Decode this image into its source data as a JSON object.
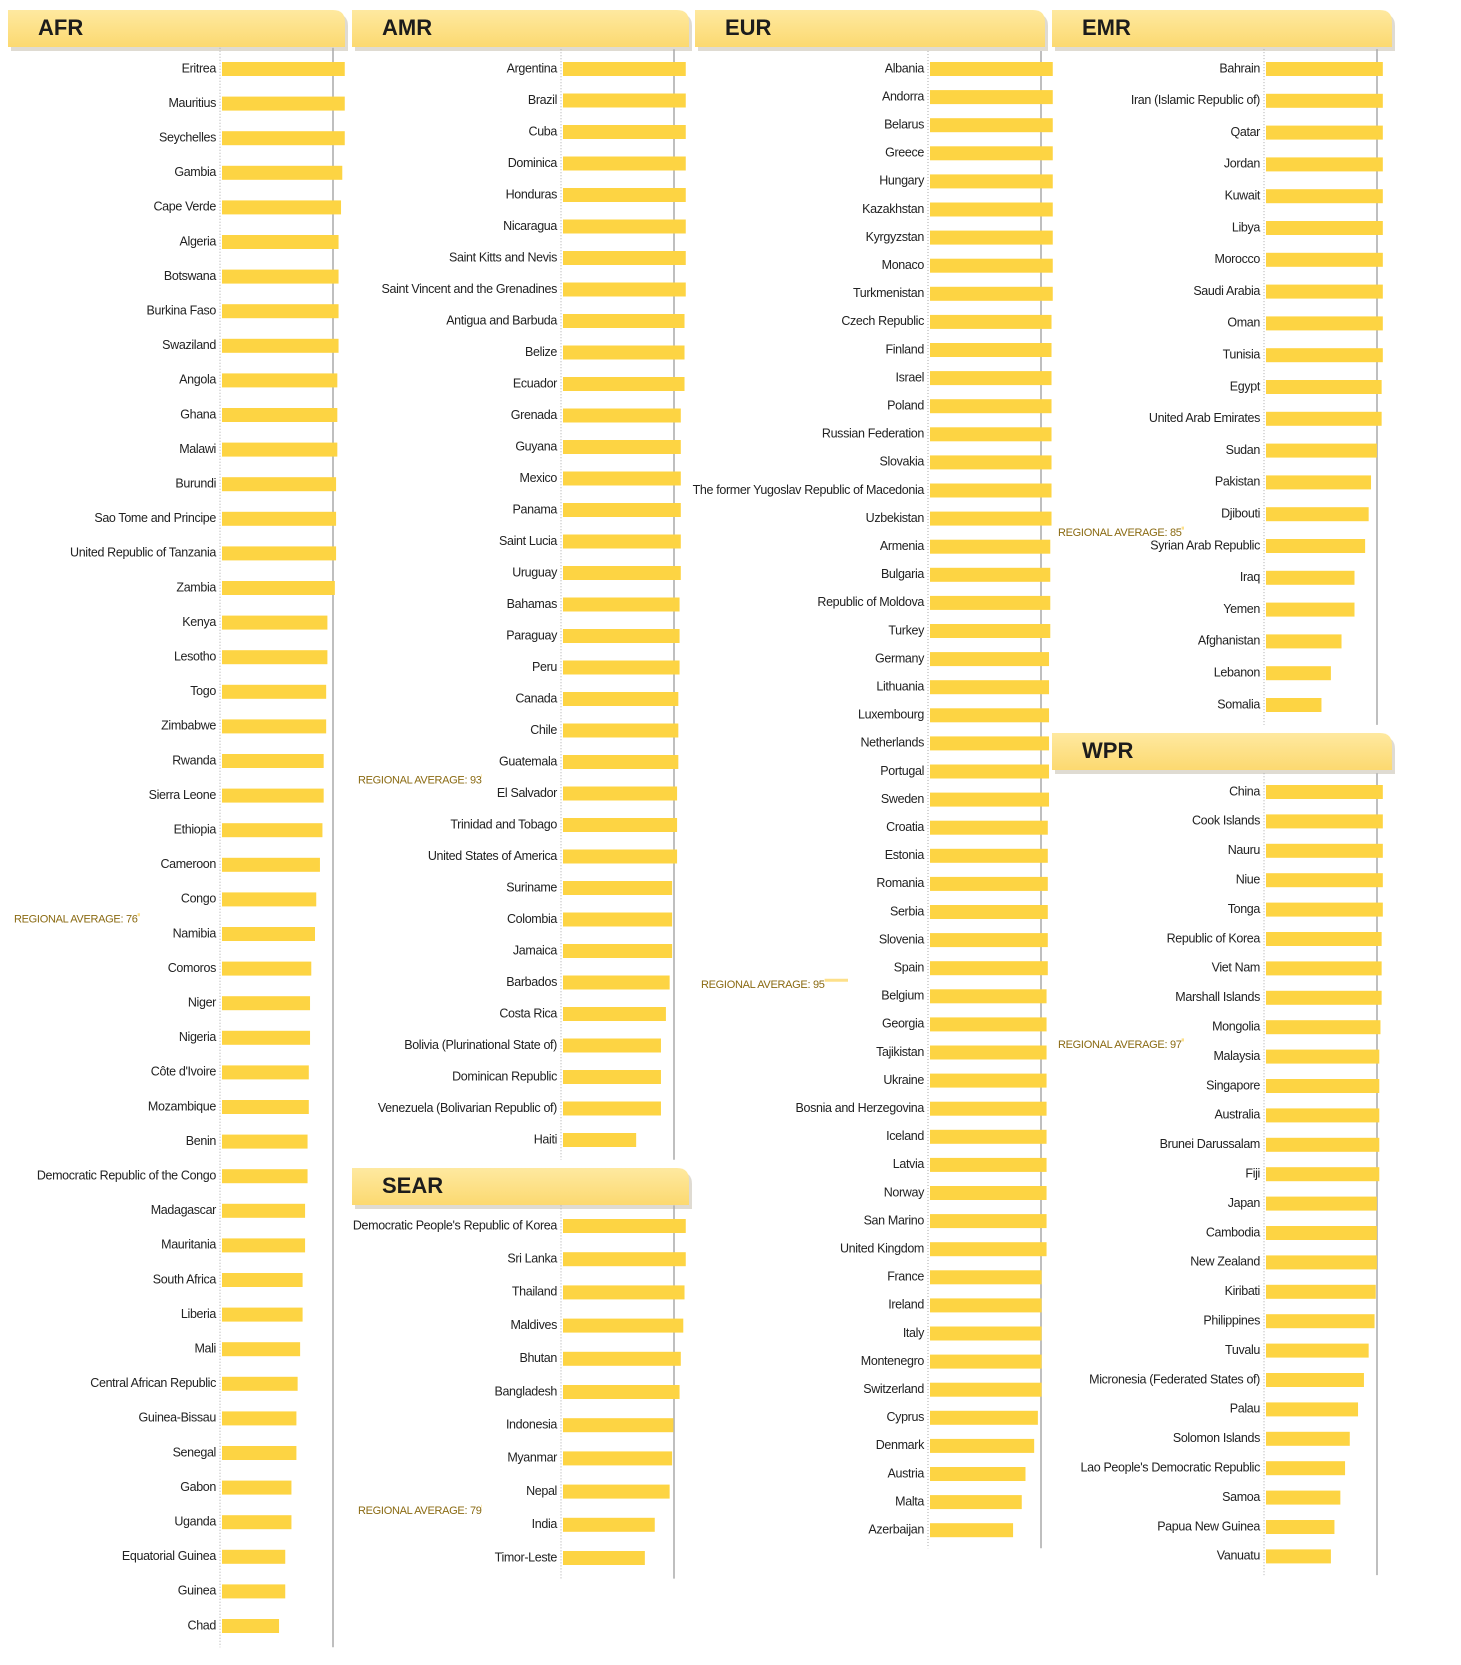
{
  "chart_data": [
    {
      "type": "bar",
      "orientation": "horizontal",
      "title": "AFR",
      "color": "#fdd443",
      "categories": [
        "Eritrea",
        "Mauritius",
        "Seychelles",
        "Gambia",
        "Cape Verde",
        "Algeria",
        "Botswana",
        "Burkina Faso",
        "Swaziland",
        "Angola",
        "Ghana",
        "Malawi",
        "Burundi",
        "Sao Tome and Principe",
        "United Republic of Tanzania",
        "Zambia",
        "Kenya",
        "Lesotho",
        "Togo",
        "Zimbabwe",
        "Rwanda",
        "Sierra Leone",
        "Ethiopia",
        "Cameroon",
        "Congo",
        "Namibia",
        "Comoros",
        "Niger",
        "Nigeria",
        "Côte d'Ivoire",
        "Mozambique",
        "Benin",
        "Democratic Republic of the Congo",
        "Madagascar",
        "Mauritania",
        "South Africa",
        "Liberia",
        "Mali",
        "Central African Republic",
        "Guinea-Bissau",
        "Senegal",
        "Gabon",
        "Uganda",
        "Equatorial Guinea",
        "Guinea",
        "Chad"
      ],
      "values": [
        99,
        99,
        99,
        97,
        96,
        94,
        94,
        94,
        94,
        93,
        93,
        93,
        92,
        92,
        92,
        91,
        85,
        85,
        84,
        84,
        82,
        82,
        81,
        79,
        76,
        75,
        72,
        71,
        71,
        70,
        70,
        69,
        69,
        67,
        67,
        65,
        65,
        63,
        61,
        60,
        60,
        56,
        56,
        51,
        51,
        46
      ],
      "average": 76,
      "average_label": "REGIONAL AVERAGE: 76"
    },
    {
      "type": "bar",
      "orientation": "horizontal",
      "title": "AMR",
      "color": "#fdd443",
      "categories": [
        "Argentina",
        "Brazil",
        "Cuba",
        "Dominica",
        "Honduras",
        "Nicaragua",
        "Saint Kitts and Nevis",
        "Saint Vincent and the Grenadines",
        "Antigua and Barbuda",
        "Belize",
        "Ecuador",
        "Grenada",
        "Guyana",
        "Mexico",
        "Panama",
        "Saint Lucia",
        "Uruguay",
        "Bahamas",
        "Paraguay",
        "Peru",
        "Canada",
        "Chile",
        "Guatemala",
        "El Salvador",
        "Trinidad and Tobago",
        "United States of America",
        "Suriname",
        "Colombia",
        "Jamaica",
        "Barbados",
        "Costa Rica",
        "Bolivia (Plurinational State of)",
        "Dominican Republic",
        "Venezuela (Bolivarian Republic of)",
        "Haiti"
      ],
      "values": [
        99,
        99,
        99,
        99,
        99,
        99,
        99,
        99,
        98,
        98,
        98,
        95,
        95,
        95,
        95,
        95,
        95,
        94,
        94,
        94,
        93,
        93,
        93,
        92,
        92,
        92,
        88,
        88,
        88,
        86,
        83,
        79,
        79,
        79,
        59
      ],
      "average": 93,
      "average_label": "REGIONAL AVERAGE: 93"
    },
    {
      "type": "bar",
      "orientation": "horizontal",
      "title": "SEAR",
      "color": "#fdd443",
      "categories": [
        "Democratic People's Republic of Korea",
        "Sri Lanka",
        "Thailand",
        "Maldives",
        "Bhutan",
        "Bangladesh",
        "Indonesia",
        "Myanmar",
        "Nepal",
        "India",
        "Timor-Leste"
      ],
      "values": [
        99,
        99,
        98,
        97,
        95,
        94,
        89,
        88,
        86,
        74,
        66
      ],
      "average": 79,
      "average_label": "REGIONAL AVERAGE: 79"
    },
    {
      "type": "bar",
      "orientation": "horizontal",
      "title": "EUR",
      "color": "#fdd443",
      "categories": [
        "Albania",
        "Andorra",
        "Belarus",
        "Greece",
        "Hungary",
        "Kazakhstan",
        "Kyrgyzstan",
        "Monaco",
        "Turkmenistan",
        "Czech Republic",
        "Finland",
        "Israel",
        "Poland",
        "Russian Federation",
        "Slovakia",
        "The former Yugoslav Republic of Macedonia",
        "Uzbekistan",
        "Armenia",
        "Bulgaria",
        "Republic of Moldova",
        "Turkey",
        "Germany",
        "Lithuania",
        "Luxembourg",
        "Netherlands",
        "Portugal",
        "Sweden",
        "Croatia",
        "Estonia",
        "Romania",
        "Serbia",
        "Slovenia",
        "Spain",
        "Belgium",
        "Georgia",
        "Tajikistan",
        "Ukraine",
        "Bosnia and Herzegovina",
        "Iceland",
        "Latvia",
        "Norway",
        "San Marino",
        "United Kingdom",
        "France",
        "Ireland",
        "Italy",
        "Montenegro",
        "Switzerland",
        "Cyprus",
        "Denmark",
        "Austria",
        "Malta",
        "Azerbaijan"
      ],
      "values": [
        99,
        99,
        99,
        99,
        99,
        99,
        99,
        99,
        99,
        98,
        98,
        98,
        98,
        98,
        98,
        98,
        98,
        97,
        97,
        97,
        97,
        96,
        96,
        96,
        96,
        96,
        96,
        95,
        95,
        95,
        95,
        95,
        95,
        94,
        94,
        94,
        94,
        94,
        94,
        94,
        94,
        94,
        94,
        90,
        90,
        90,
        90,
        90,
        87,
        84,
        77,
        74,
        67
      ],
      "average": 95,
      "average_label": "REGIONAL AVERAGE: 95"
    },
    {
      "type": "bar",
      "orientation": "horizontal",
      "title": "EMR",
      "color": "#fdd443",
      "categories": [
        "Bahrain",
        "Iran (Islamic Republic of)",
        "Qatar",
        "Jordan",
        "Kuwait",
        "Libya",
        "Morocco",
        "Saudi Arabia",
        "Oman",
        "Tunisia",
        "Egypt",
        "United Arab Emirates",
        "Sudan",
        "Pakistan",
        "Djibouti",
        "Syrian Arab Republic",
        "Iraq",
        "Yemen",
        "Afghanistan",
        "Lebanon",
        "Somalia"
      ],
      "values": [
        99,
        99,
        99,
        99,
        99,
        99,
        99,
        99,
        99,
        99,
        98,
        98,
        94,
        89,
        87,
        84,
        75,
        75,
        64,
        55,
        47
      ],
      "average": 85,
      "average_label": "REGIONAL AVERAGE: 85"
    },
    {
      "type": "bar",
      "orientation": "horizontal",
      "title": "WPR",
      "color": "#fdd443",
      "categories": [
        "China",
        "Cook Islands",
        "Nauru",
        "Niue",
        "Tonga",
        "Republic of Korea",
        "Viet Nam",
        "Marshall Islands",
        "Mongolia",
        "Malaysia",
        "Singapore",
        "Australia",
        "Brunei Darussalam",
        "Fiji",
        "Japan",
        "Cambodia",
        "New Zealand",
        "Kiribati",
        "Philippines",
        "Tuvalu",
        "Micronesia (Federated States of)",
        "Palau",
        "Solomon Islands",
        "Lao People's Democratic Republic",
        "Samoa",
        "Papua New Guinea",
        "Vanuatu"
      ],
      "values": [
        99,
        99,
        99,
        99,
        99,
        98,
        98,
        98,
        97,
        96,
        96,
        96,
        96,
        96,
        94,
        94,
        94,
        93,
        92,
        87,
        83,
        78,
        71,
        67,
        63,
        58,
        55
      ],
      "average": 97,
      "average_label": "REGIONAL AVERAGE: 97"
    }
  ]
}
